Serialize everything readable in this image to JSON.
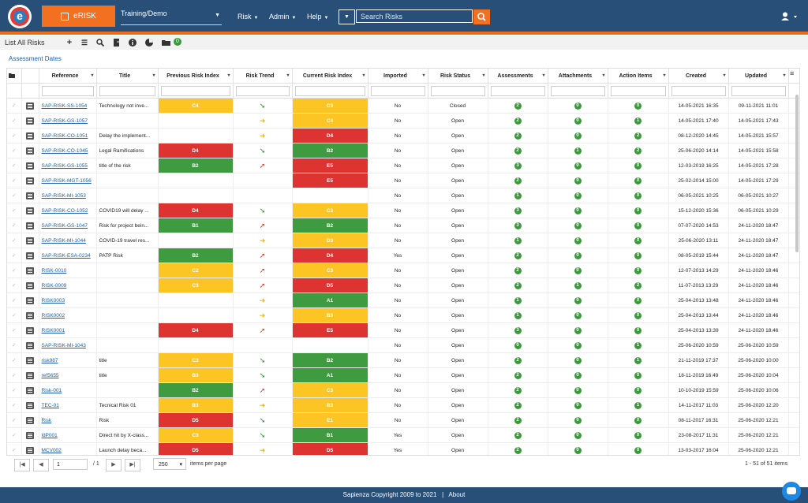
{
  "nav": {
    "brand": "eRISK",
    "environment": "Training/Demo",
    "menus": [
      "Risk",
      "Admin",
      "Help"
    ],
    "search_placeholder": "Search Risks"
  },
  "toolbar": {
    "title": "List All Risks",
    "badge": "0"
  },
  "assessment_dates_link": "Assessment Dates",
  "columns": [
    "Reference",
    "Title",
    "Previous Risk Index",
    "Risk Trend",
    "Current Risk Index",
    "Imported",
    "Risk Status",
    "Assessments",
    "Attachments",
    "Action Items",
    "Created",
    "Updated"
  ],
  "colors": {
    "yellow": "#fcc524",
    "green": "#3f9b3f",
    "red": "#de3431",
    "nav": "#274f77",
    "accent": "#f37021"
  },
  "rows": [
    {
      "ref": "SAP-RISK-SS-1054",
      "title": "Technology not inve...",
      "prev": "C4",
      "prev_c": "y",
      "trend": "down",
      "cur": "C3",
      "cur_c": "y",
      "imported": "No",
      "status": "Closed",
      "asmt": "2",
      "att": "0",
      "act": "0",
      "created": "14-05-2021 16:35",
      "updated": "09-11-2021 11:01"
    },
    {
      "ref": "SAP-RISK-GS-1057",
      "title": "",
      "prev": "",
      "prev_c": "",
      "trend": "flat",
      "cur": "C4",
      "cur_c": "y",
      "imported": "No",
      "status": "Open",
      "asmt": "2",
      "att": "0",
      "act": "1",
      "created": "14-05-2021 17:40",
      "updated": "14-05-2021 17:43"
    },
    {
      "ref": "SAP-RISK-CO-1051",
      "title": "Delay the implement...",
      "prev": "",
      "prev_c": "",
      "trend": "flat",
      "cur": "D4",
      "cur_c": "r",
      "imported": "No",
      "status": "Open",
      "asmt": "2",
      "att": "0",
      "act": "2",
      "created": "08-12-2020 14:45",
      "updated": "14-05-2021 15:57"
    },
    {
      "ref": "SAP-RISK-CO-1045",
      "title": "Legal Ramifications",
      "prev": "D4",
      "prev_c": "r",
      "trend": "down",
      "cur": "B2",
      "cur_c": "g",
      "imported": "No",
      "status": "Open",
      "asmt": "2",
      "att": "1",
      "act": "2",
      "created": "25-06-2020 14:14",
      "updated": "14-05-2021 15:58"
    },
    {
      "ref": "SAP-RISK-GS-1055",
      "title": "title of the risk",
      "prev": "B2",
      "prev_c": "g",
      "trend": "up",
      "cur": "E5",
      "cur_c": "r",
      "imported": "No",
      "status": "Open",
      "asmt": "3",
      "att": "0",
      "act": "0",
      "created": "12-03-2019 16:25",
      "updated": "14-05-2021 17:28"
    },
    {
      "ref": "SAP-RISK-MGT-1056",
      "title": "",
      "prev": "",
      "prev_c": "",
      "trend": "",
      "cur": "E5",
      "cur_c": "r",
      "imported": "No",
      "status": "Open",
      "asmt": "2",
      "att": "0",
      "act": "0",
      "created": "25-02-2014 15:00",
      "updated": "14-05-2021 17:29"
    },
    {
      "ref": "SAP-RISK-MI-1053",
      "title": "",
      "prev": "",
      "prev_c": "",
      "trend": "",
      "cur": "",
      "cur_c": "",
      "imported": "No",
      "status": "Open",
      "asmt": "1",
      "att": "0",
      "act": "0",
      "created": "06-05-2021 10:25",
      "updated": "06-05-2021 10:27"
    },
    {
      "ref": "SAP-RISK-CO-1052",
      "title": "COVID19 will delay ...",
      "prev": "D4",
      "prev_c": "r",
      "trend": "down",
      "cur": "C3",
      "cur_c": "y",
      "imported": "No",
      "status": "Open",
      "asmt": "3",
      "att": "0",
      "act": "0",
      "created": "15-12-2020 15:36",
      "updated": "06-05-2021 10:29"
    },
    {
      "ref": "SAP-RISK-GS-1047",
      "title": "Risk for project bein...",
      "prev": "B1",
      "prev_c": "g",
      "trend": "up",
      "cur": "B2",
      "cur_c": "g",
      "imported": "No",
      "status": "Open",
      "asmt": "3",
      "att": "0",
      "act": "0",
      "created": "07-07-2020 14:53",
      "updated": "24-11-2020 18:47"
    },
    {
      "ref": "SAP-RISK-MI-1044",
      "title": "COVID-19 travel res...",
      "prev": "",
      "prev_c": "",
      "trend": "flat",
      "cur": "D3",
      "cur_c": "y",
      "imported": "No",
      "status": "Open",
      "asmt": "1",
      "att": "0",
      "act": "0",
      "created": "25-06-2020 13:11",
      "updated": "24-11-2020 18:47"
    },
    {
      "ref": "SAP-RISK-ESA-0234",
      "title": "PATP Risk",
      "prev": "B2",
      "prev_c": "g",
      "trend": "up",
      "cur": "D4",
      "cur_c": "r",
      "imported": "Yes",
      "status": "Open",
      "asmt": "2",
      "att": "0",
      "act": "0",
      "created": "08-05-2019 15:44",
      "updated": "24-11-2020 18:47"
    },
    {
      "ref": "RISK-0010",
      "title": "",
      "prev": "C2",
      "prev_c": "y",
      "trend": "up",
      "cur": "C3",
      "cur_c": "y",
      "imported": "No",
      "status": "Open",
      "asmt": "2",
      "att": "0",
      "act": "0",
      "created": "12-07-2013 14:29",
      "updated": "24-11-2020 18:46"
    },
    {
      "ref": "RISK-0009",
      "title": "",
      "prev": "C3",
      "prev_c": "y",
      "trend": "up",
      "cur": "D5",
      "cur_c": "r",
      "imported": "No",
      "status": "Open",
      "asmt": "2",
      "att": "1",
      "act": "2",
      "created": "11-07-2013 13:29",
      "updated": "24-11-2020 18:46"
    },
    {
      "ref": "RISK0003",
      "title": "",
      "prev": "",
      "prev_c": "",
      "trend": "flat",
      "cur": "A1",
      "cur_c": "g",
      "imported": "No",
      "status": "Open",
      "asmt": "1",
      "att": "0",
      "act": "0",
      "created": "25-04-2013 13:48",
      "updated": "24-11-2020 18:46"
    },
    {
      "ref": "RISK0002",
      "title": "",
      "prev": "",
      "prev_c": "",
      "trend": "flat",
      "cur": "B3",
      "cur_c": "y",
      "imported": "No",
      "status": "Open",
      "asmt": "1",
      "att": "0",
      "act": "0",
      "created": "25-04-2013 13:44",
      "updated": "24-11-2020 18:46"
    },
    {
      "ref": "RISK0001",
      "title": "",
      "prev": "D4",
      "prev_c": "r",
      "trend": "up",
      "cur": "E5",
      "cur_c": "r",
      "imported": "No",
      "status": "Open",
      "asmt": "3",
      "att": "0",
      "act": "0",
      "created": "25-04-2013 13:39",
      "updated": "24-11-2020 18:46"
    },
    {
      "ref": "SAP-RISK-MI-1043",
      "title": "",
      "prev": "",
      "prev_c": "",
      "trend": "",
      "cur": "",
      "cur_c": "",
      "imported": "No",
      "status": "Open",
      "asmt": "0",
      "att": "0",
      "act": "1",
      "created": "25-06-2020 10:59",
      "updated": "25-06-2020 10:59"
    },
    {
      "ref": "risk987",
      "title": "title",
      "prev": "C3",
      "prev_c": "y",
      "trend": "down",
      "cur": "B2",
      "cur_c": "g",
      "imported": "No",
      "status": "Open",
      "asmt": "2",
      "att": "0",
      "act": "1",
      "created": "21-11-2019 17:37",
      "updated": "25-06-2020 10:00"
    },
    {
      "ref": "ref5655",
      "title": "title",
      "prev": "B3",
      "prev_c": "y",
      "trend": "down",
      "cur": "A1",
      "cur_c": "g",
      "imported": "No",
      "status": "Open",
      "asmt": "2",
      "att": "0",
      "act": "0",
      "created": "18-11-2019 16:49",
      "updated": "25-06-2020 10:04"
    },
    {
      "ref": "Risk-001",
      "title": "",
      "prev": "B2",
      "prev_c": "g",
      "trend": "up",
      "cur": "C3",
      "cur_c": "y",
      "imported": "No",
      "status": "Open",
      "asmt": "2",
      "att": "0",
      "act": "0",
      "created": "10-10-2019 15:59",
      "updated": "25-06-2020 10:06"
    },
    {
      "ref": "TEC-01",
      "title": "Tecnical Risk 01",
      "prev": "B3",
      "prev_c": "y",
      "trend": "flat",
      "cur": "B3",
      "cur_c": "y",
      "imported": "No",
      "status": "Open",
      "asmt": "2",
      "att": "0",
      "act": "1",
      "created": "14-11-2017 11:03",
      "updated": "25-06-2020 12:20"
    },
    {
      "ref": "Risk",
      "title": "Risk",
      "prev": "D5",
      "prev_c": "r",
      "trend": "down",
      "cur": "E1",
      "cur_c": "y",
      "imported": "No",
      "status": "Open",
      "asmt": "2",
      "att": "0",
      "act": "0",
      "created": "08-11-2017 16:31",
      "updated": "25-06-2020 12:21"
    },
    {
      "ref": "ldP001",
      "title": "Direct hit by X-class...",
      "prev": "C3",
      "prev_c": "y",
      "trend": "down",
      "cur": "B1",
      "cur_c": "g",
      "imported": "Yes",
      "status": "Open",
      "asmt": "2",
      "att": "0",
      "act": "0",
      "created": "23-08-2017 11:31",
      "updated": "25-06-2020 12:21"
    },
    {
      "ref": "MCV002",
      "title": "Launch delay beca...",
      "prev": "D5",
      "prev_c": "r",
      "trend": "flat",
      "cur": "D5",
      "cur_c": "r",
      "imported": "Yes",
      "status": "Open",
      "asmt": "2",
      "att": "0",
      "act": "0",
      "created": "13-03-2017 16:04",
      "updated": "25-06-2020 12:21"
    }
  ],
  "pager": {
    "page": "1",
    "of": "/ 1",
    "page_size": "250",
    "items_per_page": "items per page",
    "summary": "1 - 51 of 51 items"
  },
  "footer": {
    "copyright": "Sapienza Copyright 2009 to 2021",
    "sep": "|",
    "about": "About"
  }
}
